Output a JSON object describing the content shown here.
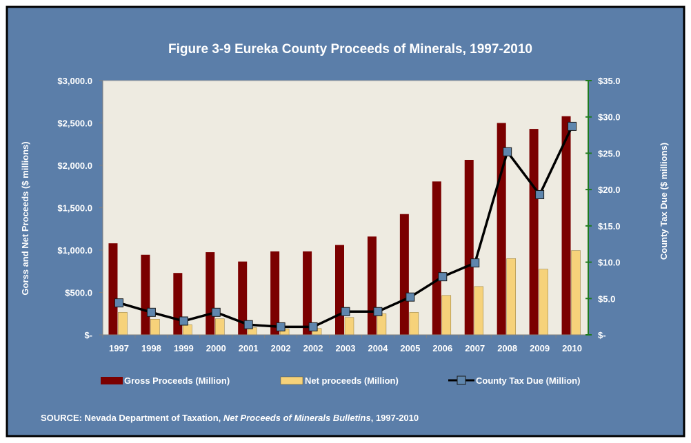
{
  "chart_data": {
    "type": "bar",
    "title": "Figure 3-9 Eureka County Proceeds of Minerals, 1997-2010",
    "categories": [
      "1997",
      "1998",
      "1999",
      "2000",
      "2001",
      "2002",
      "2002",
      "2003",
      "2004",
      "2005",
      "2006",
      "2007",
      "2008",
      "2009",
      "2010"
    ],
    "ylabel": "Gorss and Net Proceeds ($ millions)",
    "y2label": "County Tax Due ($ millions)",
    "ylim": [
      0,
      3000
    ],
    "y2lim": [
      0,
      35
    ],
    "yticks": [
      "$-",
      "$500.0",
      "$1,000.0",
      "$1,500.0",
      "$2,000.0",
      "$2,500.0",
      "$3,000.0"
    ],
    "y2ticks": [
      "$-",
      "$5.0",
      "$10.0",
      "$15.0",
      "$20.0",
      "$25.0",
      "$30.0",
      "$35.0"
    ],
    "grid": false,
    "legend_position": "bottom",
    "series": [
      {
        "name": "Gross Proceeds (Million)",
        "type": "bar",
        "axis": "left",
        "color": "#7b0000",
        "values": [
          1080,
          945,
          730,
          975,
          865,
          985,
          985,
          1060,
          1160,
          1425,
          1810,
          2065,
          2500,
          2430,
          2580
        ]
      },
      {
        "name": "Net proceeds (Million)",
        "type": "bar",
        "axis": "left",
        "color": "#f6d27a",
        "values": [
          265,
          185,
          120,
          190,
          85,
          70,
          75,
          205,
          250,
          265,
          465,
          570,
          900,
          775,
          995
        ]
      },
      {
        "name": "County Tax Due (Million)",
        "type": "line",
        "axis": "right",
        "color": "#000000",
        "marker_color": "#5f86ad",
        "values": [
          4.4,
          3.1,
          1.9,
          3.1,
          1.4,
          1.1,
          1.1,
          3.2,
          3.2,
          5.2,
          8.0,
          9.9,
          25.2,
          19.3,
          28.7
        ]
      }
    ]
  },
  "source": {
    "prefix": "SOURCE: Nevada Department of Taxation, ",
    "italic": "Net Proceeds of Minerals Bulletins",
    "suffix": ", 1997-2010"
  },
  "colors": {
    "background": "#5b7ea9",
    "plot_area": "#eeebe1",
    "right_axis": "#1f7a1f"
  }
}
